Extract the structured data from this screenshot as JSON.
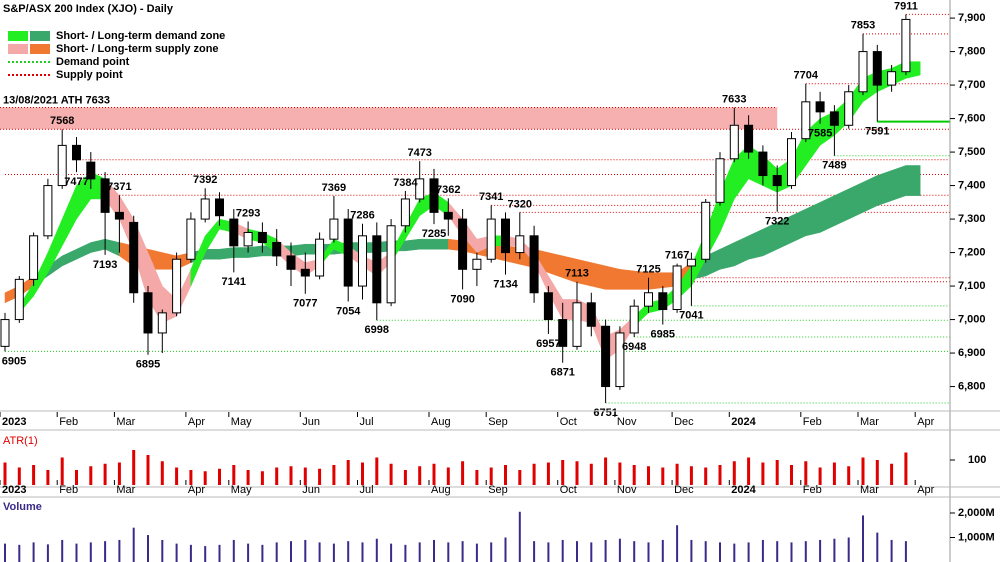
{
  "chart_data": {
    "type": "candlestick",
    "title": "S&P/ASX 200 Index (XJO) - Daily",
    "categories": [
      "2023",
      null,
      null,
      null,
      "Feb",
      null,
      null,
      null,
      "Mar",
      null,
      null,
      null,
      null,
      "Apr",
      null,
      null,
      "May",
      null,
      null,
      null,
      null,
      "Jun",
      null,
      null,
      null,
      "Jul",
      null,
      null,
      null,
      null,
      "Aug",
      null,
      null,
      null,
      "Sep",
      null,
      null,
      null,
      null,
      "Oct",
      null,
      null,
      null,
      "Nov",
      null,
      null,
      null,
      "Dec",
      null,
      null,
      null,
      "2024",
      null,
      null,
      null,
      null,
      "Feb",
      null,
      null,
      null,
      "Mar",
      null,
      null,
      null,
      "Apr"
    ],
    "open": [
      6920,
      7000,
      7120,
      7250,
      7400,
      7520,
      7470,
      7420,
      7320,
      7290,
      7080,
      6960,
      7020,
      7180,
      7300,
      7360,
      7300,
      7220,
      7260,
      7230,
      7190,
      7150,
      7130,
      7240,
      7300,
      7100,
      7250,
      7050,
      7280,
      7360,
      7420,
      7320,
      7300,
      7150,
      7180,
      7300,
      7200,
      7250,
      7080,
      7000,
      6920,
      7050,
      6980,
      6800,
      6960,
      7040,
      7080,
      7030,
      7160,
      7180,
      7350,
      7480,
      7580,
      7500,
      7430,
      7400,
      7540,
      7650,
      7620,
      7580,
      7680,
      7800,
      7700,
      7740,
      null
    ],
    "high": [
      7020,
      7130,
      7260,
      7420,
      7568,
      7545,
      7500,
      7440,
      7371,
      7310,
      7100,
      7030,
      7200,
      7320,
      7392,
      7380,
      7330,
      7293,
      7290,
      7270,
      7230,
      7200,
      7260,
      7369,
      7330,
      7286,
      7290,
      7300,
      7384,
      7473,
      7450,
      7362,
      7330,
      7200,
      7341,
      7320,
      7320,
      7280,
      7100,
      7050,
      7113,
      7080,
      7000,
      6980,
      7060,
      7125,
      7100,
      7167,
      7200,
      7360,
      7500,
      7633,
      7610,
      7520,
      7460,
      7560,
      7704,
      7680,
      7640,
      7700,
      7853,
      7820,
      7760,
      7911,
      null
    ],
    "low": [
      6905,
      6990,
      7100,
      7240,
      7390,
      7440,
      7390,
      7193,
      7200,
      7050,
      6895,
      6900,
      7010,
      7170,
      7290,
      7280,
      7141,
      7200,
      7200,
      7160,
      7100,
      7077,
      7120,
      7230,
      7054,
      7060,
      6998,
      7040,
      7260,
      7350,
      7285,
      7250,
      7090,
      7100,
      7170,
      7134,
      7180,
      7050,
      6957,
      6871,
      6910,
      6950,
      6751,
      6790,
      6948,
      7020,
      6985,
      7020,
      7041,
      7170,
      7340,
      7470,
      7480,
      7400,
      7322,
      7390,
      7530,
      7585,
      7489,
      7570,
      7670,
      7591,
      7680,
      7730,
      null
    ],
    "close": [
      7000,
      7120,
      7250,
      7400,
      7520,
      7477,
      7420,
      7320,
      7300,
      7080,
      6960,
      7020,
      7180,
      7300,
      7360,
      7310,
      7220,
      7260,
      7230,
      7190,
      7150,
      7130,
      7240,
      7300,
      7100,
      7250,
      7050,
      7280,
      7360,
      7420,
      7320,
      7300,
      7150,
      7180,
      7300,
      7200,
      7250,
      7080,
      7000,
      6920,
      7050,
      6980,
      6800,
      6960,
      7040,
      7080,
      7030,
      7160,
      7180,
      7350,
      7480,
      7580,
      7500,
      7430,
      7400,
      7540,
      7650,
      7620,
      7580,
      7680,
      7800,
      7700,
      7740,
      7896,
      null
    ],
    "short_zone": {
      "upper": [
        null,
        7040,
        7110,
        7200,
        7300,
        7400,
        7440,
        7420,
        7370,
        7300,
        7200,
        7100,
        7060,
        7150,
        7250,
        7300,
        7290,
        7270,
        7260,
        7240,
        7200,
        7170,
        7180,
        7240,
        7220,
        7190,
        7170,
        7200,
        7280,
        7360,
        7380,
        7350,
        7300,
        7240,
        7250,
        7250,
        7240,
        7200,
        7130,
        7060,
        7060,
        7040,
        6950,
        6970,
        7010,
        7050,
        7060,
        7100,
        7160,
        7260,
        7380,
        7480,
        7520,
        7490,
        7450,
        7480,
        7560,
        7600,
        7620,
        7660,
        7720,
        7740,
        7750,
        7770,
        7770
      ],
      "lower": [
        null,
        7020,
        7070,
        7140,
        7220,
        7300,
        7360,
        7360,
        7300,
        7200,
        7060,
        6990,
        7010,
        7100,
        7200,
        7270,
        7260,
        7240,
        7230,
        7200,
        7160,
        7130,
        7160,
        7210,
        7190,
        7160,
        7130,
        7170,
        7240,
        7310,
        7340,
        7310,
        7250,
        7200,
        7220,
        7220,
        7220,
        7170,
        7080,
        7000,
        7000,
        6990,
        6880,
        6910,
        6980,
        7020,
        7030,
        7060,
        7100,
        7180,
        7260,
        7360,
        7420,
        7400,
        7380,
        7400,
        7460,
        7520,
        7550,
        7590,
        7650,
        7680,
        7700,
        7720,
        7730
      ],
      "colors": [
        "#22ee22",
        "#22ee22",
        "#22ee22",
        "#22ee22",
        "#22ee22",
        "#22ee22",
        "#22ee22",
        "#f4a8a8",
        "#f4a8a8",
        "#f4a8a8",
        "#f4a8a8",
        "#f4a8a8",
        "#f4a8a8",
        "#22ee22",
        "#22ee22",
        "#22ee22",
        "#f4a8a8",
        "#22ee22",
        "#22ee22",
        "#f4a8a8",
        "#f4a8a8",
        "#f4a8a8",
        "#22ee22",
        "#22ee22",
        "#f4a8a8",
        "#f4a8a8",
        "#f4a8a8",
        "#22ee22",
        "#22ee22",
        "#22ee22",
        "#22ee22",
        "#f4a8a8",
        "#f4a8a8",
        "#f4a8a8",
        "#22ee22",
        "#f4a8a8",
        "#f4a8a8",
        "#f4a8a8",
        "#f4a8a8",
        "#f4a8a8",
        "#f4a8a8",
        "#f4a8a8",
        "#f4a8a8",
        "#f4a8a8",
        "#22ee22",
        "#22ee22",
        "#22ee22",
        "#22ee22",
        "#22ee22",
        "#22ee22",
        "#22ee22",
        "#22ee22",
        "#22ee22",
        "#22ee22",
        "#22ee22",
        "#22ee22",
        "#22ee22",
        "#22ee22",
        "#22ee22",
        "#22ee22",
        "#22ee22",
        "#22ee22",
        "#22ee22",
        "#22ee22",
        "#22ee22"
      ]
    },
    "long_zone": {
      "upper": [
        7080,
        7100,
        7130,
        7160,
        7190,
        7210,
        7230,
        7240,
        7230,
        7220,
        7210,
        7200,
        7190,
        7200,
        7210,
        7210,
        7215,
        7215,
        7220,
        7220,
        7220,
        7225,
        7225,
        7225,
        7230,
        7230,
        7230,
        7235,
        7235,
        7240,
        7240,
        7240,
        7235,
        7230,
        7225,
        7220,
        7215,
        7210,
        7200,
        7190,
        7180,
        7170,
        7160,
        7150,
        7145,
        7140,
        7140,
        7140,
        7170,
        7190,
        7210,
        7230,
        7250,
        7270,
        7290,
        7310,
        7330,
        7350,
        7370,
        7390,
        7410,
        7430,
        7445,
        7460,
        7460
      ],
      "lower": [
        7050,
        7070,
        7100,
        7130,
        7160,
        7180,
        7200,
        7210,
        7190,
        7160,
        7150,
        7150,
        7150,
        7170,
        7180,
        7180,
        7185,
        7185,
        7190,
        7190,
        7190,
        7195,
        7195,
        7195,
        7200,
        7200,
        7200,
        7205,
        7205,
        7210,
        7210,
        7210,
        7205,
        7195,
        7185,
        7175,
        7165,
        7155,
        7140,
        7125,
        7110,
        7100,
        7090,
        7090,
        7090,
        7090,
        7095,
        7100,
        7120,
        7130,
        7150,
        7160,
        7180,
        7190,
        7210,
        7230,
        7250,
        7260,
        7280,
        7300,
        7320,
        7340,
        7355,
        7370,
        7370
      ],
      "colors": [
        "#f07830",
        "#f07830",
        "#3aa86b",
        "#3aa86b",
        "#3aa86b",
        "#3aa86b",
        "#3aa86b",
        "#3aa86b",
        "#f07830",
        "#f07830",
        "#f07830",
        "#f07830",
        "#f07830",
        "#3aa86b",
        "#3aa86b",
        "#3aa86b",
        "#3aa86b",
        "#3aa86b",
        "#3aa86b",
        "#3aa86b",
        "#3aa86b",
        "#3aa86b",
        "#3aa86b",
        "#3aa86b",
        "#3aa86b",
        "#3aa86b",
        "#3aa86b",
        "#3aa86b",
        "#3aa86b",
        "#3aa86b",
        "#3aa86b",
        "#f07830",
        "#f07830",
        "#f07830",
        "#f07830",
        "#f07830",
        "#f07830",
        "#f07830",
        "#f07830",
        "#f07830",
        "#f07830",
        "#f07830",
        "#f07830",
        "#f07830",
        "#f07830",
        "#f07830",
        "#f07830",
        "#f07830",
        "#3aa86b",
        "#3aa86b",
        "#3aa86b",
        "#3aa86b",
        "#3aa86b",
        "#3aa86b",
        "#3aa86b",
        "#3aa86b",
        "#3aa86b",
        "#3aa86b",
        "#3aa86b",
        "#3aa86b",
        "#3aa86b",
        "#3aa86b",
        "#3aa86b",
        "#3aa86b",
        "#3aa86b"
      ]
    },
    "ath_zone": {
      "label": "13/08/2021 ATH 7633",
      "lower": 7568,
      "upper": 7633,
      "color": "#f7b0b0"
    },
    "demand_points": [
      {
        "value": 7489,
        "start": 58
      },
      {
        "value": 7041,
        "start": 48
      },
      {
        "value": 6998,
        "start": 26
      },
      {
        "value": 6948,
        "start": 44
      },
      {
        "value": 6905,
        "start": 0
      },
      {
        "value": 6751,
        "start": 42
      }
    ],
    "supply_points": [
      {
        "value": 7911,
        "start": 63
      },
      {
        "value": 7853,
        "start": 60
      },
      {
        "value": 7704,
        "start": 56
      },
      {
        "value": 7477,
        "start": 5
      },
      {
        "value": 7433,
        "start": 0
      },
      {
        "value": 7371,
        "start": 8
      },
      {
        "value": 7341,
        "start": 34
      },
      {
        "value": 7320,
        "start": 36
      },
      {
        "value": 7125,
        "start": 45
      },
      {
        "value": 7113,
        "start": 40
      }
    ],
    "active_demand_point": {
      "value": 7591,
      "start": 61,
      "color": "#00cc00"
    },
    "demand_color": "#22cc22",
    "supply_color": "#e00000",
    "annotations": [
      {
        "x": 0,
        "value": 6905
      },
      {
        "x": 4,
        "value": 7568
      },
      {
        "x": 5,
        "value": 7477
      },
      {
        "x": 7,
        "value": 7193
      },
      {
        "x": 8,
        "value": 7371
      },
      {
        "x": 10,
        "value": 6895
      },
      {
        "x": 14,
        "value": 7392
      },
      {
        "x": 16,
        "value": 7141
      },
      {
        "x": 17,
        "value": 7293
      },
      {
        "x": 21,
        "value": 7077
      },
      {
        "x": 23,
        "value": 7369
      },
      {
        "x": 24,
        "value": 7054
      },
      {
        "x": 25,
        "value": 7286
      },
      {
        "x": 26,
        "value": 6998
      },
      {
        "x": 28,
        "value": 7384
      },
      {
        "x": 29,
        "value": 7473
      },
      {
        "x": 30,
        "value": 7285
      },
      {
        "x": 31,
        "value": 7362
      },
      {
        "x": 32,
        "value": 7090
      },
      {
        "x": 34,
        "value": 7341
      },
      {
        "x": 35,
        "value": 7134
      },
      {
        "x": 36,
        "value": 7320
      },
      {
        "x": 38,
        "value": 6957
      },
      {
        "x": 39,
        "value": 6871
      },
      {
        "x": 40,
        "value": 7113
      },
      {
        "x": 42,
        "value": 6751
      },
      {
        "x": 44,
        "value": 6948
      },
      {
        "x": 45,
        "value": 7125
      },
      {
        "x": 46,
        "value": 6985
      },
      {
        "x": 47,
        "value": 7167
      },
      {
        "x": 48,
        "value": 7041
      },
      {
        "x": 51,
        "value": 7633
      },
      {
        "x": 54,
        "value": 7322
      },
      {
        "x": 56,
        "value": 7704
      },
      {
        "x": 57,
        "value": 7585
      },
      {
        "x": 58,
        "value": 7489
      },
      {
        "x": 60,
        "value": 7853
      },
      {
        "x": 61,
        "value": 7591
      },
      {
        "x": 63,
        "value": 7911
      }
    ],
    "ylim": [
      6730,
      7954
    ],
    "yticks": [
      {
        "value": 6800,
        "label": "6,800"
      },
      {
        "value": 6900,
        "label": "6,900"
      },
      {
        "value": 7000,
        "label": "7,000"
      },
      {
        "value": 7100,
        "label": "7,100"
      },
      {
        "value": 7200,
        "label": "7,200"
      },
      {
        "value": 7300,
        "label": "7,300"
      },
      {
        "value": 7400,
        "label": "7,400"
      },
      {
        "value": 7500,
        "label": "7,500"
      },
      {
        "value": 7600,
        "label": "7,600"
      },
      {
        "value": 7700,
        "label": "7,700"
      },
      {
        "value": 7800,
        "label": "7,800"
      },
      {
        "value": 7900,
        "label": "7,900"
      }
    ],
    "legend": [
      {
        "label": "Short- / Long-term demand zone",
        "colors": [
          "#22ee22",
          "#3aa86b"
        ]
      },
      {
        "label": "Short- / Long-term supply zone",
        "colors": [
          "#f4a8a8",
          "#f07830"
        ]
      },
      {
        "label": "Demand point",
        "color": "#22cc22",
        "dotted": true
      },
      {
        "label": "Supply point",
        "color": "#e00000",
        "dotted": true
      }
    ],
    "atr": {
      "label": "ATR(1)",
      "color": "#e00000",
      "values": [
        90,
        70,
        80,
        60,
        110,
        60,
        75,
        85,
        90,
        140,
        120,
        95,
        70,
        60,
        55,
        65,
        80,
        60,
        55,
        70,
        75,
        70,
        65,
        80,
        100,
        90,
        110,
        85,
        60,
        75,
        85,
        70,
        95,
        60,
        70,
        80,
        60,
        85,
        90,
        100,
        95,
        85,
        110,
        90,
        80,
        75,
        70,
        85,
        75,
        70,
        80,
        95,
        110,
        90,
        100,
        80,
        95,
        70,
        90,
        75,
        110,
        100,
        85,
        130,
        null
      ],
      "ylim": [
        0,
        212
      ],
      "yticks": [
        100
      ]
    },
    "volume": {
      "label": "Volume",
      "color": "#3a2a8a",
      "values": [
        750,
        700,
        800,
        720,
        900,
        750,
        800,
        850,
        900,
        1400,
        1100,
        900,
        750,
        700,
        650,
        700,
        900,
        750,
        700,
        800,
        850,
        900,
        800,
        750,
        850,
        800,
        950,
        750,
        700,
        800,
        900,
        800,
        850,
        750,
        800,
        1000,
        2050,
        850,
        800,
        900,
        850,
        800,
        900,
        950,
        850,
        800,
        900,
        1500,
        900,
        850,
        800,
        750,
        800,
        900,
        850,
        800,
        850,
        900,
        950,
        1000,
        1900,
        1200,
        900,
        850,
        null
      ],
      "ylim": [
        0,
        2530
      ],
      "yticks": [
        {
          "value": 1000,
          "label": "1,000M"
        },
        {
          "value": 2000,
          "label": "2,000M"
        }
      ]
    }
  }
}
